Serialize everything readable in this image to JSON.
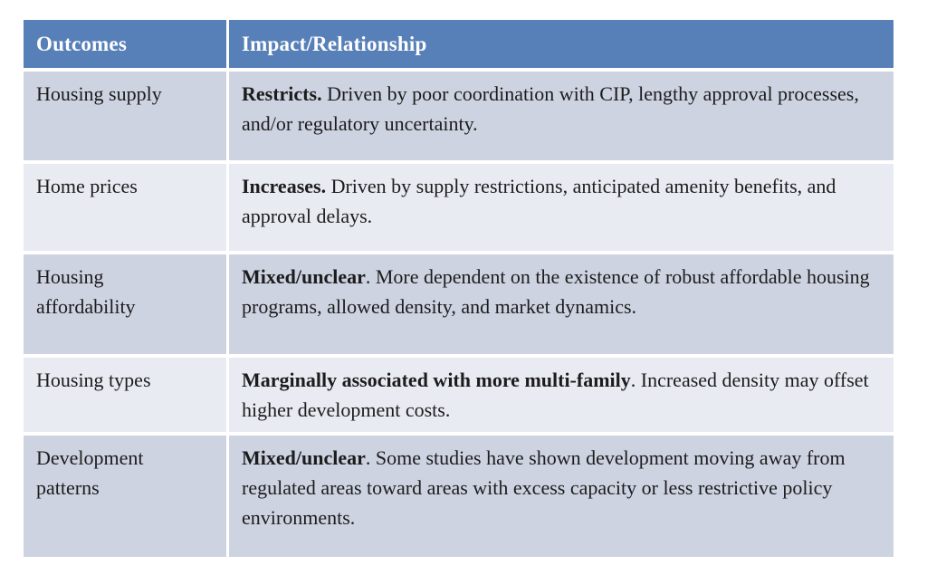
{
  "table": {
    "headers": [
      {
        "label": "Outcomes"
      },
      {
        "label": "Impact/Relationship"
      }
    ],
    "rows": [
      {
        "outcome": "Housing supply",
        "impact_bold": "Restricts.",
        "impact_rest": " Driven by poor coordination with CIP, lengthy approval processes, and/or regulatory uncertainty."
      },
      {
        "outcome": "Home prices",
        "impact_bold": "Increases.",
        "impact_rest": " Driven by supply restrictions, anticipated amenity benefits, and approval delays."
      },
      {
        "outcome": "Housing affordability",
        "impact_bold": "Mixed/unclear",
        "impact_rest": ". More dependent on the existence of robust affordable housing programs, allowed density, and market dynamics."
      },
      {
        "outcome": "Housing types",
        "impact_bold": "Marginally associated with more multi-family",
        "impact_rest": ". Increased density may offset higher development costs."
      },
      {
        "outcome": "Development patterns",
        "impact_bold": "Mixed/unclear",
        "impact_rest": ". Some studies have shown development moving away from regulated areas toward areas with excess capacity or less restrictive policy environments."
      }
    ]
  },
  "colors": {
    "header_bg": "#5880b8",
    "header_text": "#ffffff",
    "row_dark": "#ced3e2",
    "row_light": "#e9ebf3",
    "body_text": "#1c1c1c",
    "divider": "#ffffff",
    "page_bg": "#ffffff"
  }
}
